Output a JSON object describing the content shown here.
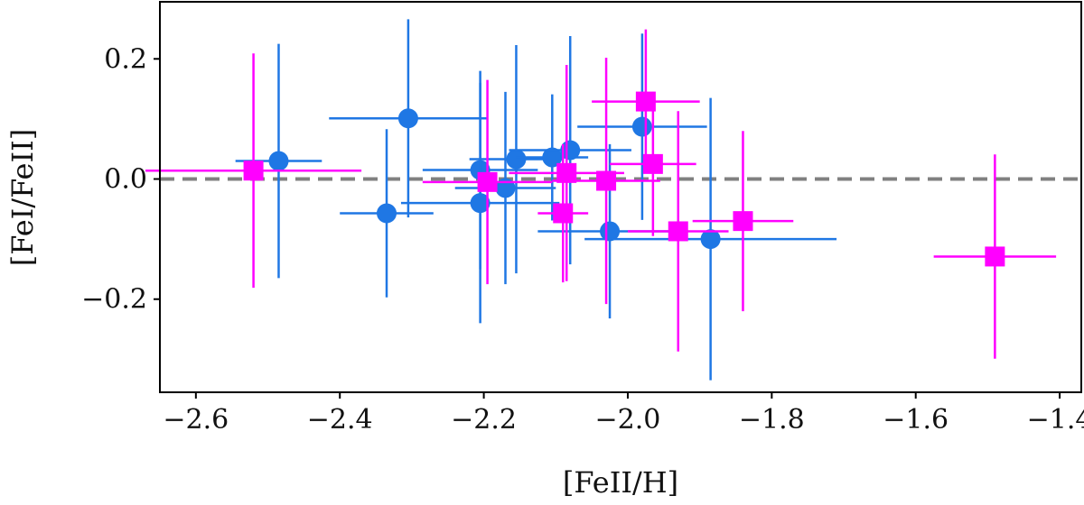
{
  "chart_data": {
    "type": "scatter",
    "title": "",
    "xlabel": "[FeII/H]",
    "ylabel": "[FeI/FeII]",
    "xlim": [
      -2.65,
      -1.37
    ],
    "ylim": [
      -0.355,
      0.295
    ],
    "xticks": [
      -2.6,
      -2.4,
      -2.2,
      -2.0,
      -1.8,
      -1.6,
      -1.4
    ],
    "yticks": [
      -0.2,
      0.0,
      0.2
    ],
    "xtick_labels": [
      "−2.6",
      "−2.4",
      "−2.2",
      "−2.0",
      "−1.8",
      "−1.6",
      "−1.4"
    ],
    "ytick_labels": [
      "−0.2",
      "0.0",
      "0.2"
    ],
    "reference_line": {
      "y": 0.0,
      "style": "dashed",
      "color": "#808080"
    },
    "grid": false,
    "legend": "none",
    "series": [
      {
        "marker": "circle",
        "color": "#1f77e4",
        "points": [
          {
            "x": -2.485,
            "y": 0.03,
            "xerr": 0.06,
            "yerr": 0.195
          },
          {
            "x": -2.335,
            "y": -0.057,
            "xerr": 0.065,
            "yerr": 0.14
          },
          {
            "x": -2.305,
            "y": 0.101,
            "xerr": 0.11,
            "yerr": 0.165
          },
          {
            "x": -2.205,
            "y": 0.015,
            "xerr": 0.08,
            "yerr": 0.165
          },
          {
            "x": -2.205,
            "y": -0.04,
            "xerr": 0.11,
            "yerr": 0.2
          },
          {
            "x": -2.17,
            "y": -0.015,
            "xerr": 0.07,
            "yerr": 0.16
          },
          {
            "x": -2.155,
            "y": 0.033,
            "xerr": 0.065,
            "yerr": 0.19
          },
          {
            "x": -2.105,
            "y": 0.036,
            "xerr": 0.05,
            "yerr": 0.105
          },
          {
            "x": -2.08,
            "y": 0.048,
            "xerr": 0.085,
            "yerr": 0.19
          },
          {
            "x": -2.025,
            "y": -0.087,
            "xerr": 0.1,
            "yerr": 0.145
          },
          {
            "x": -1.98,
            "y": 0.087,
            "xerr": 0.09,
            "yerr": 0.155
          },
          {
            "x": -1.885,
            "y": -0.1,
            "xerr": 0.175,
            "yerr": 0.235
          }
        ]
      },
      {
        "marker": "square",
        "color": "#ff00ff",
        "points": [
          {
            "x": -2.52,
            "y": 0.014,
            "xerr": 0.15,
            "yerr": 0.195
          },
          {
            "x": -2.195,
            "y": -0.005,
            "xerr": 0.09,
            "yerr": 0.17
          },
          {
            "x": -2.09,
            "y": -0.057,
            "xerr": 0.035,
            "yerr": 0.115
          },
          {
            "x": -2.085,
            "y": 0.01,
            "xerr": 0.08,
            "yerr": 0.18
          },
          {
            "x": -2.03,
            "y": -0.003,
            "xerr": 0.075,
            "yerr": 0.205
          },
          {
            "x": -1.975,
            "y": 0.129,
            "xerr": 0.075,
            "yerr": 0.12
          },
          {
            "x": -1.965,
            "y": 0.025,
            "xerr": 0.06,
            "yerr": 0.12
          },
          {
            "x": -1.93,
            "y": -0.087,
            "xerr": 0.07,
            "yerr": 0.2
          },
          {
            "x": -1.84,
            "y": -0.07,
            "xerr": 0.07,
            "yerr": 0.15
          },
          {
            "x": -1.49,
            "y": -0.129,
            "xerr": 0.085,
            "yerr": 0.17
          }
        ]
      }
    ]
  }
}
